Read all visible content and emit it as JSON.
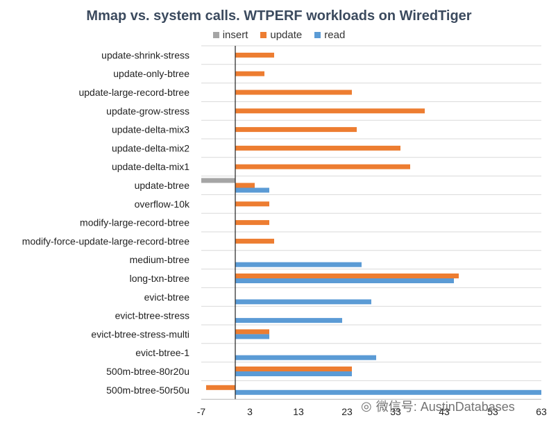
{
  "chart_data": {
    "type": "bar",
    "orientation": "horizontal",
    "title": "Mmap vs. system calls. WTPERF workloads on WiredTiger",
    "categories": [
      "update-shrink-stress",
      "update-only-btree",
      "update-large-record-btree",
      "update-grow-stress",
      "update-delta-mix3",
      "update-delta-mix2",
      "update-delta-mix1",
      "update-btree",
      "overflow-10k",
      "modify-large-record-btree",
      "modify-force-update-large-record-btree",
      "medium-btree",
      "long-txn-btree",
      "evict-btree",
      "evict-btree-stress",
      "evict-btree-stress-multi",
      "evict-btree-1",
      "500m-btree-80r20u",
      "500m-btree-50r50u"
    ],
    "series": [
      {
        "name": "insert",
        "color": "#a5a5a5",
        "values": [
          null,
          null,
          null,
          null,
          null,
          null,
          null,
          -7,
          null,
          null,
          null,
          null,
          null,
          null,
          null,
          null,
          null,
          null,
          null
        ]
      },
      {
        "name": "update",
        "color": "#ed7d31",
        "values": [
          8,
          6,
          24,
          39,
          25,
          34,
          36,
          4,
          7,
          7,
          8,
          null,
          46,
          null,
          null,
          7,
          null,
          24,
          -6
        ]
      },
      {
        "name": "read",
        "color": "#5b9bd5",
        "values": [
          null,
          null,
          null,
          null,
          null,
          null,
          null,
          7,
          null,
          null,
          null,
          26,
          45,
          28,
          22,
          7,
          29,
          24,
          63
        ]
      }
    ],
    "xlim": [
      -7,
      63
    ],
    "xticks": [
      -7,
      3,
      13,
      23,
      33,
      43,
      53,
      63
    ],
    "xtick_labels": [
      "-7",
      "3",
      "13",
      "23",
      "33",
      "43",
      "53",
      "63"
    ],
    "grid": "horizontal",
    "legend_position": "top-center"
  },
  "watermark": {
    "icon": "wechat-icon",
    "text": "微信号: AustinDatabases"
  }
}
